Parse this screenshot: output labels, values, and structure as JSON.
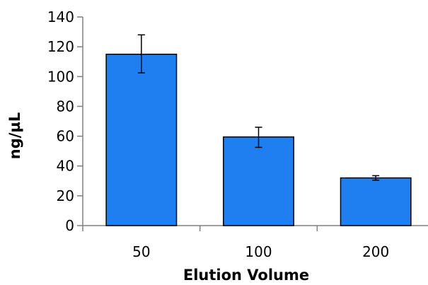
{
  "chart_data": {
    "type": "bar",
    "title": "",
    "xlabel": "Elution Volume",
    "ylabel": "ng/µL",
    "categories": [
      "50",
      "100",
      "200"
    ],
    "values": [
      115,
      59.5,
      32
    ],
    "error_bars": [
      {
        "low": 102.5,
        "high": 128
      },
      {
        "low": 52.5,
        "high": 66
      },
      {
        "low": 30.5,
        "high": 33.5
      }
    ],
    "ylim": [
      0,
      140
    ],
    "yticks": [
      "0",
      "20",
      "40",
      "60",
      "80",
      "100",
      "120",
      "140"
    ],
    "grid": false,
    "legend": "none",
    "bar_color": "#1f7ff0",
    "bar_edge_color": "#000000"
  }
}
